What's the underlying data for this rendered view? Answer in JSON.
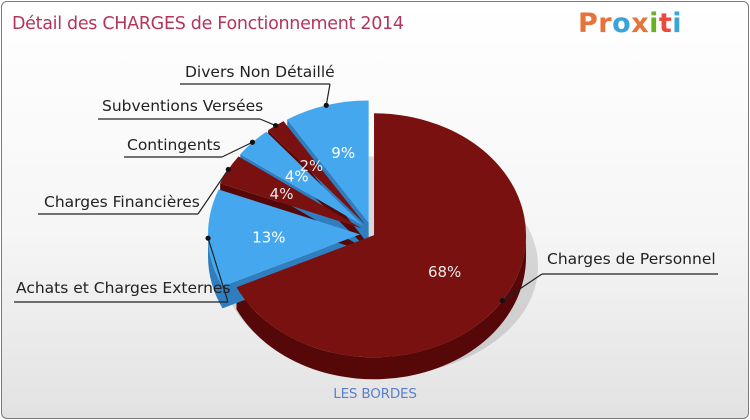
{
  "title": "Détail des CHARGES de Fonctionnement 2014",
  "logo": {
    "letters": [
      "P",
      "r",
      "o",
      "x",
      "i",
      "t",
      "i"
    ],
    "colors": [
      "#e8733a",
      "#e8733a",
      "#3aa4d9",
      "#e8733a",
      "#6ab023",
      "#e84a3c",
      "#3aa4d9"
    ]
  },
  "commune": "LES BORDES",
  "colors": {
    "dark_red": "#7a1111",
    "dark_red_side": "#560808",
    "light_blue": "#45a8ef",
    "light_blue_side": "#2f7fc0",
    "label_pct_dark": "#e9e9e9",
    "label_pct_light": "#ffffff"
  },
  "chart_data": {
    "type": "pie",
    "title": "Détail des CHARGES de Fonctionnement 2014",
    "unit": "%",
    "slices": [
      {
        "label": "Charges de Personnel",
        "value": 68,
        "display": "68%",
        "color": "#7a1111"
      },
      {
        "label": "Achats et Charges Externes",
        "value": 13,
        "display": "13%",
        "color": "#45a8ef"
      },
      {
        "label": "Charges Financières",
        "value": 4,
        "display": "4%",
        "color": "#7a1111"
      },
      {
        "label": "Contingents",
        "value": 4,
        "display": "4%",
        "color": "#45a8ef"
      },
      {
        "label": "Subventions Versées",
        "value": 2,
        "display": "2%",
        "color": "#7a1111"
      },
      {
        "label": "Divers Non Détaillé",
        "value": 9,
        "display": "9%",
        "color": "#45a8ef"
      }
    ]
  }
}
